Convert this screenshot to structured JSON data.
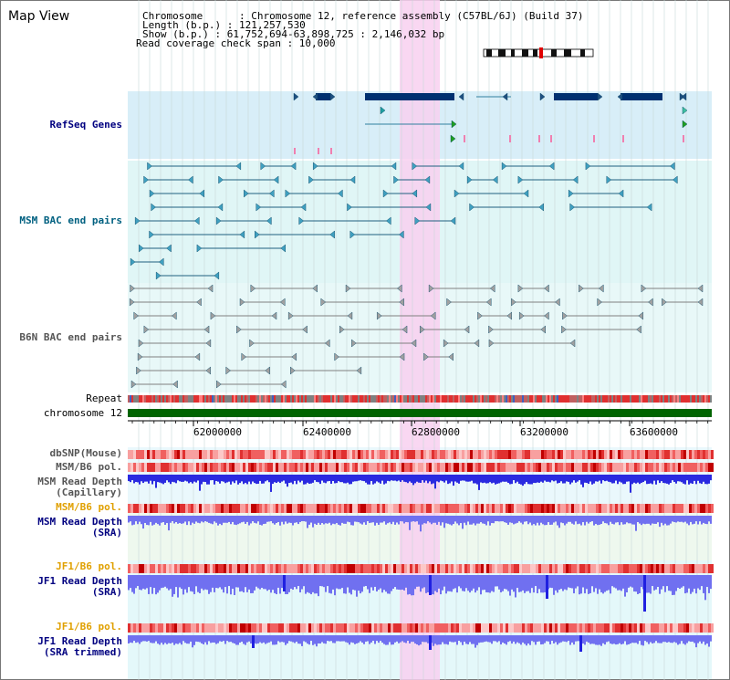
{
  "title": "Map View",
  "info": {
    "chromosome": "Chromosome      : Chromosome 12, reference assembly (C57BL/6J) (Build 37)",
    "length": "Length (b.p.) : 121,257,530",
    "show": "Show (b.p.) : 61,752,694-63,898,725 : 2,146,032 bp",
    "coverage": "Read coverage check span : 10,000"
  },
  "tracks": {
    "refseq": "RefSeq Genes",
    "msm_bac": "MSM BAC end pairs",
    "b6n_bac": "B6N BAC end pairs",
    "repeat": "Repeat",
    "chromosome": "chromosome 12",
    "dbsnp": "dbSNP(Mouse)",
    "msm_b6_pol_1": "MSM/B6 pol.",
    "msm_read_depth_cap_1": "MSM Read Depth",
    "msm_read_depth_cap_2": "(Capillary)",
    "msm_b6_pol_2": "MSM/B6 pol.",
    "msm_read_depth_sra_1": "MSM Read Depth",
    "msm_read_depth_sra_2": "(SRA)",
    "jf1_b6_pol_1": "JF1/B6 pol.",
    "jf1_read_depth_1": "JF1 Read Depth",
    "jf1_read_depth_2": "(SRA)",
    "jf1_b6_pol_2": "JF1/B6 pol.",
    "jf1_trim_1": "JF1 Read Depth",
    "jf1_trim_2": "(SRA trimmed)"
  },
  "axis_ticks": [
    "62000000",
    "62400000",
    "62800000",
    "63200000",
    "63600000"
  ],
  "colors": {
    "label_blue": "#000080",
    "label_teal": "#006080",
    "label_grey": "#555555",
    "label_orange": "#e0a000",
    "highlight": "#f8d0f0",
    "chromosome_bar": "#006400",
    "depth_cap": "#2a2ae0",
    "depth_sra": "#7070f0"
  }
}
